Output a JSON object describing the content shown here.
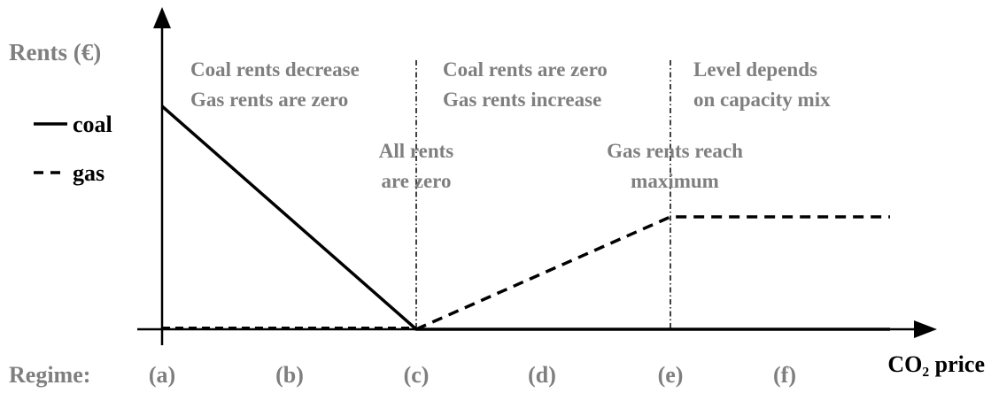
{
  "axis": {
    "y_label": "Rents (€)",
    "x_label": "CO₂ price"
  },
  "legend": [
    {
      "label": "coal"
    },
    {
      "label": "gas"
    }
  ],
  "regions": [
    [
      "Coal rents decrease",
      "Gas rents are zero"
    ],
    [
      "Coal rents are zero",
      "Gas rents increase"
    ],
    [
      "Level depends",
      "on capacity mix"
    ]
  ],
  "events": [
    [
      "All rents",
      "are zero"
    ],
    [
      "Gas rents reach",
      "maximum"
    ]
  ],
  "regime": {
    "label": "Regime:",
    "items": [
      "(a)",
      "(b)",
      "(c)",
      "(d)",
      "(e)",
      "(f)"
    ]
  }
}
